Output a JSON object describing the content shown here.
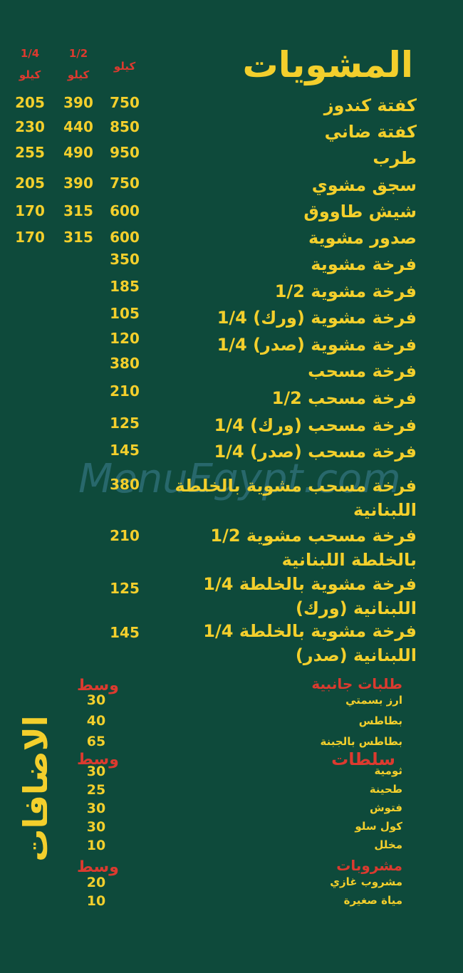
{
  "colors": {
    "background": "#0e4a3b",
    "text": "#f3cf2c",
    "accent": "#dc3a2f"
  },
  "watermark": "MenuEgypt.com",
  "grills": {
    "title": "المشويات",
    "headers": [
      {
        "fraction": "",
        "unit": "كيلو"
      },
      {
        "fraction": "1/2",
        "unit": "كيلو"
      },
      {
        "fraction": "1/4",
        "unit": "كيلو"
      }
    ],
    "items": [
      {
        "name": "كفتة كندوز",
        "prices": [
          "750",
          "390",
          "205"
        ]
      },
      {
        "name": "كفتة ضاني",
        "prices": [
          "850",
          "440",
          "230"
        ]
      },
      {
        "name": "طرب",
        "prices": [
          "950",
          "490",
          "255"
        ]
      },
      {
        "name": "سجق مشوي",
        "prices": [
          "750",
          "390",
          "205"
        ]
      },
      {
        "name": "شيش طاووق",
        "prices": [
          "600",
          "315",
          "170"
        ]
      },
      {
        "name": "صدور مشوية",
        "prices": [
          "600",
          "315",
          "170"
        ]
      },
      {
        "name": "فرخة مشوية",
        "prices": [
          "350"
        ]
      },
      {
        "name": "فرخة مشوية 1/2",
        "prices": [
          "185"
        ]
      },
      {
        "name": "فرخة مشوية (ورك) 1/4",
        "prices": [
          "105"
        ]
      },
      {
        "name": "فرخة مشوية (صدر) 1/4",
        "prices": [
          "120"
        ]
      },
      {
        "name": "فرخة مسحب",
        "prices": [
          "380"
        ]
      },
      {
        "name": "فرخة مسحب 1/2",
        "prices": [
          "210"
        ]
      },
      {
        "name": "فرخة مسحب (ورك) 1/4",
        "prices": [
          "125"
        ]
      },
      {
        "name": "فرخة مسحب (صدر) 1/4",
        "prices": [
          "145"
        ]
      },
      {
        "name": "فرخة مسحب مشوية بالخلطة اللبنانية",
        "prices": [
          "380"
        ]
      },
      {
        "name": "فرخة مسحب مشوية 1/2 بالخلطة اللبنانية",
        "prices": [
          "210"
        ]
      },
      {
        "name": "فرخة مشوية بالخلطة 1/4 اللبنانية (ورك)",
        "prices": [
          "125"
        ]
      },
      {
        "name": "فرخة مشوية بالخلطة 1/4 اللبنانية (صدر)",
        "prices": [
          "145"
        ]
      }
    ]
  },
  "extras": {
    "title": "الاضافات",
    "sections": [
      {
        "title": "طلبات جانبية",
        "size_label": "وسط",
        "items": [
          {
            "name": "ارز بسمتي",
            "price": "30"
          },
          {
            "name": "بطاطس",
            "price": "40"
          },
          {
            "name": "بطاطس بالجبنة",
            "price": "65"
          }
        ]
      },
      {
        "title": "سلطات",
        "size_label": "وسط",
        "items": [
          {
            "name": "ثومية",
            "price": "30"
          },
          {
            "name": "طحينة",
            "price": "25"
          },
          {
            "name": "فتوش",
            "price": "30"
          },
          {
            "name": "كول سلو",
            "price": "30"
          },
          {
            "name": "مخلل",
            "price": "10"
          }
        ]
      },
      {
        "title": "مشروبات",
        "size_label": "وسط",
        "items": [
          {
            "name": "مشروب غازي",
            "price": "20"
          },
          {
            "name": "مياة صغيرة",
            "price": "10"
          }
        ]
      }
    ]
  }
}
